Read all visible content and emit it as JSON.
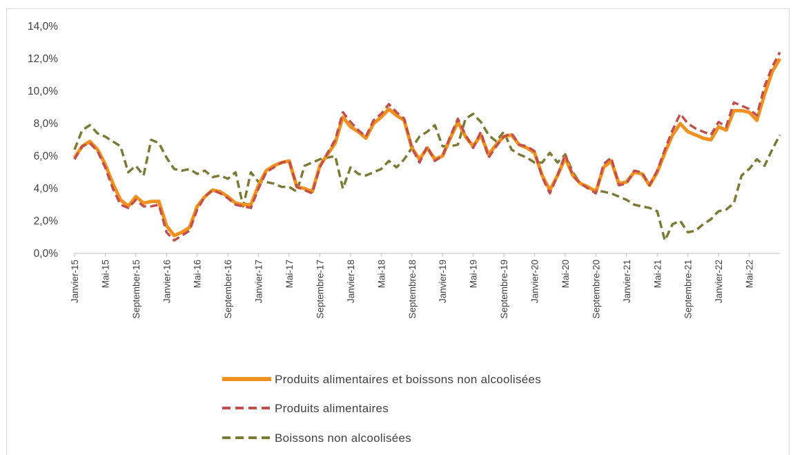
{
  "chart_data": {
    "type": "line",
    "title": "",
    "xlabel": "",
    "ylabel": "",
    "ylim": [
      0,
      14
    ],
    "y_ticks": [
      "0,0%",
      "2,0%",
      "4,0%",
      "6,0%",
      "8,0%",
      "10,0%",
      "12,0%",
      "14,0%"
    ],
    "x_tick_labels": [
      {
        "label": "Janvier-15",
        "index": 0
      },
      {
        "label": "Mai-15",
        "index": 4
      },
      {
        "label": "September-15",
        "index": 8
      },
      {
        "label": "Janvier-16",
        "index": 12
      },
      {
        "label": "Mai-16",
        "index": 16
      },
      {
        "label": "September-16",
        "index": 20
      },
      {
        "label": "Janvier-17",
        "index": 24
      },
      {
        "label": "Mai-17",
        "index": 28
      },
      {
        "label": "Septembre-17",
        "index": 32
      },
      {
        "label": "Janvier-18",
        "index": 36
      },
      {
        "label": "Mai-18",
        "index": 40
      },
      {
        "label": "Septembre-18",
        "index": 44
      },
      {
        "label": "Janvier-19",
        "index": 48
      },
      {
        "label": "Mai-19",
        "index": 52
      },
      {
        "label": "Septembre-19",
        "index": 56
      },
      {
        "label": "Janvier-20",
        "index": 60
      },
      {
        "label": "Mai-20",
        "index": 64
      },
      {
        "label": "Septembre-20",
        "index": 68
      },
      {
        "label": "Janvier-21",
        "index": 72
      },
      {
        "label": "Mai-21",
        "index": 76
      },
      {
        "label": "Septembre-21",
        "index": 80
      },
      {
        "label": "Janvier-22",
        "index": 84
      },
      {
        "label": "Mai-22",
        "index": 88
      }
    ],
    "grid": false,
    "legend_position": "bottom",
    "series": [
      {
        "name": "Produits alimentaires et boissons non alcoolisées",
        "color": "#f0901e",
        "style": "solid",
        "values": [
          5.9,
          6.6,
          6.9,
          6.4,
          5.5,
          4.3,
          3.3,
          2.9,
          3.5,
          3.1,
          3.2,
          3.2,
          1.7,
          1.1,
          1.3,
          1.6,
          2.9,
          3.5,
          3.9,
          3.8,
          3.5,
          3.1,
          3.0,
          3.0,
          4.2,
          5.1,
          5.4,
          5.6,
          5.7,
          4.1,
          4.0,
          3.8,
          5.4,
          6.1,
          6.8,
          8.4,
          7.8,
          7.5,
          7.1,
          8.0,
          8.4,
          8.9,
          8.5,
          8.2,
          6.5,
          5.8,
          6.5,
          5.8,
          6.0,
          7.1,
          8.1,
          7.2,
          6.6,
          7.3,
          6.1,
          6.7,
          7.2,
          7.3,
          6.7,
          6.5,
          6.2,
          4.8,
          3.9,
          4.8,
          5.9,
          4.8,
          4.3,
          4.1,
          3.8,
          5.3,
          5.7,
          4.3,
          4.4,
          5.0,
          4.9,
          4.2,
          5.0,
          6.2,
          7.3,
          8.0,
          7.5,
          7.3,
          7.1,
          7.0,
          7.8,
          7.6,
          8.8,
          8.8,
          8.7,
          8.2,
          9.8,
          11.2,
          12.0
        ]
      },
      {
        "name": "Produits alimentaires",
        "color": "#c0504d",
        "style": "dashed",
        "values": [
          5.8,
          6.6,
          6.8,
          6.3,
          5.3,
          4.0,
          3.0,
          2.8,
          3.3,
          2.9,
          2.9,
          3.0,
          1.3,
          0.8,
          1.1,
          1.4,
          2.7,
          3.5,
          3.9,
          3.7,
          3.4,
          3.0,
          2.9,
          2.8,
          4.0,
          5.0,
          5.3,
          5.6,
          5.7,
          4.1,
          3.9,
          3.7,
          5.3,
          6.2,
          7.0,
          8.7,
          8.1,
          7.6,
          7.2,
          8.2,
          8.6,
          9.2,
          8.7,
          8.3,
          6.5,
          5.6,
          6.6,
          5.7,
          6.0,
          7.2,
          8.3,
          7.3,
          6.5,
          7.5,
          5.9,
          6.6,
          7.2,
          7.4,
          6.7,
          6.6,
          6.3,
          4.7,
          3.7,
          4.8,
          6.1,
          4.8,
          4.3,
          4.0,
          3.7,
          5.5,
          5.9,
          4.2,
          4.3,
          5.1,
          5.0,
          4.2,
          5.1,
          6.4,
          7.6,
          8.6,
          8.0,
          7.7,
          7.5,
          7.3,
          8.1,
          7.8,
          9.3,
          9.1,
          8.9,
          8.5,
          10.3,
          11.5,
          12.4
        ]
      },
      {
        "name": "Boissons non alcoolisées",
        "color": "#7a7a36",
        "style": "dashed",
        "values": [
          6.4,
          7.6,
          7.9,
          7.4,
          7.2,
          6.9,
          6.6,
          5.0,
          5.4,
          4.8,
          7.0,
          6.8,
          5.9,
          5.2,
          5.1,
          5.2,
          4.9,
          5.1,
          4.7,
          4.8,
          4.6,
          5.0,
          2.9,
          5.0,
          4.4,
          4.4,
          4.3,
          4.1,
          4.1,
          3.8,
          5.4,
          5.6,
          5.8,
          5.9,
          6.0,
          4.0,
          5.3,
          4.9,
          4.8,
          5.0,
          5.2,
          5.7,
          5.3,
          5.8,
          6.5,
          7.2,
          7.5,
          7.9,
          6.6,
          6.6,
          6.7,
          8.3,
          8.6,
          8.1,
          7.3,
          6.9,
          7.5,
          6.4,
          6.1,
          5.9,
          5.6,
          5.6,
          6.2,
          5.6,
          6.1,
          5.0,
          4.3,
          4.0,
          3.9,
          3.8,
          3.7,
          3.5,
          3.3,
          3.0,
          2.9,
          2.8,
          2.6,
          0.8,
          1.8,
          2.0,
          1.3,
          1.4,
          1.8,
          2.1,
          2.6,
          2.7,
          3.1,
          4.8,
          5.2,
          5.8,
          5.4,
          6.4,
          7.3
        ]
      }
    ]
  }
}
